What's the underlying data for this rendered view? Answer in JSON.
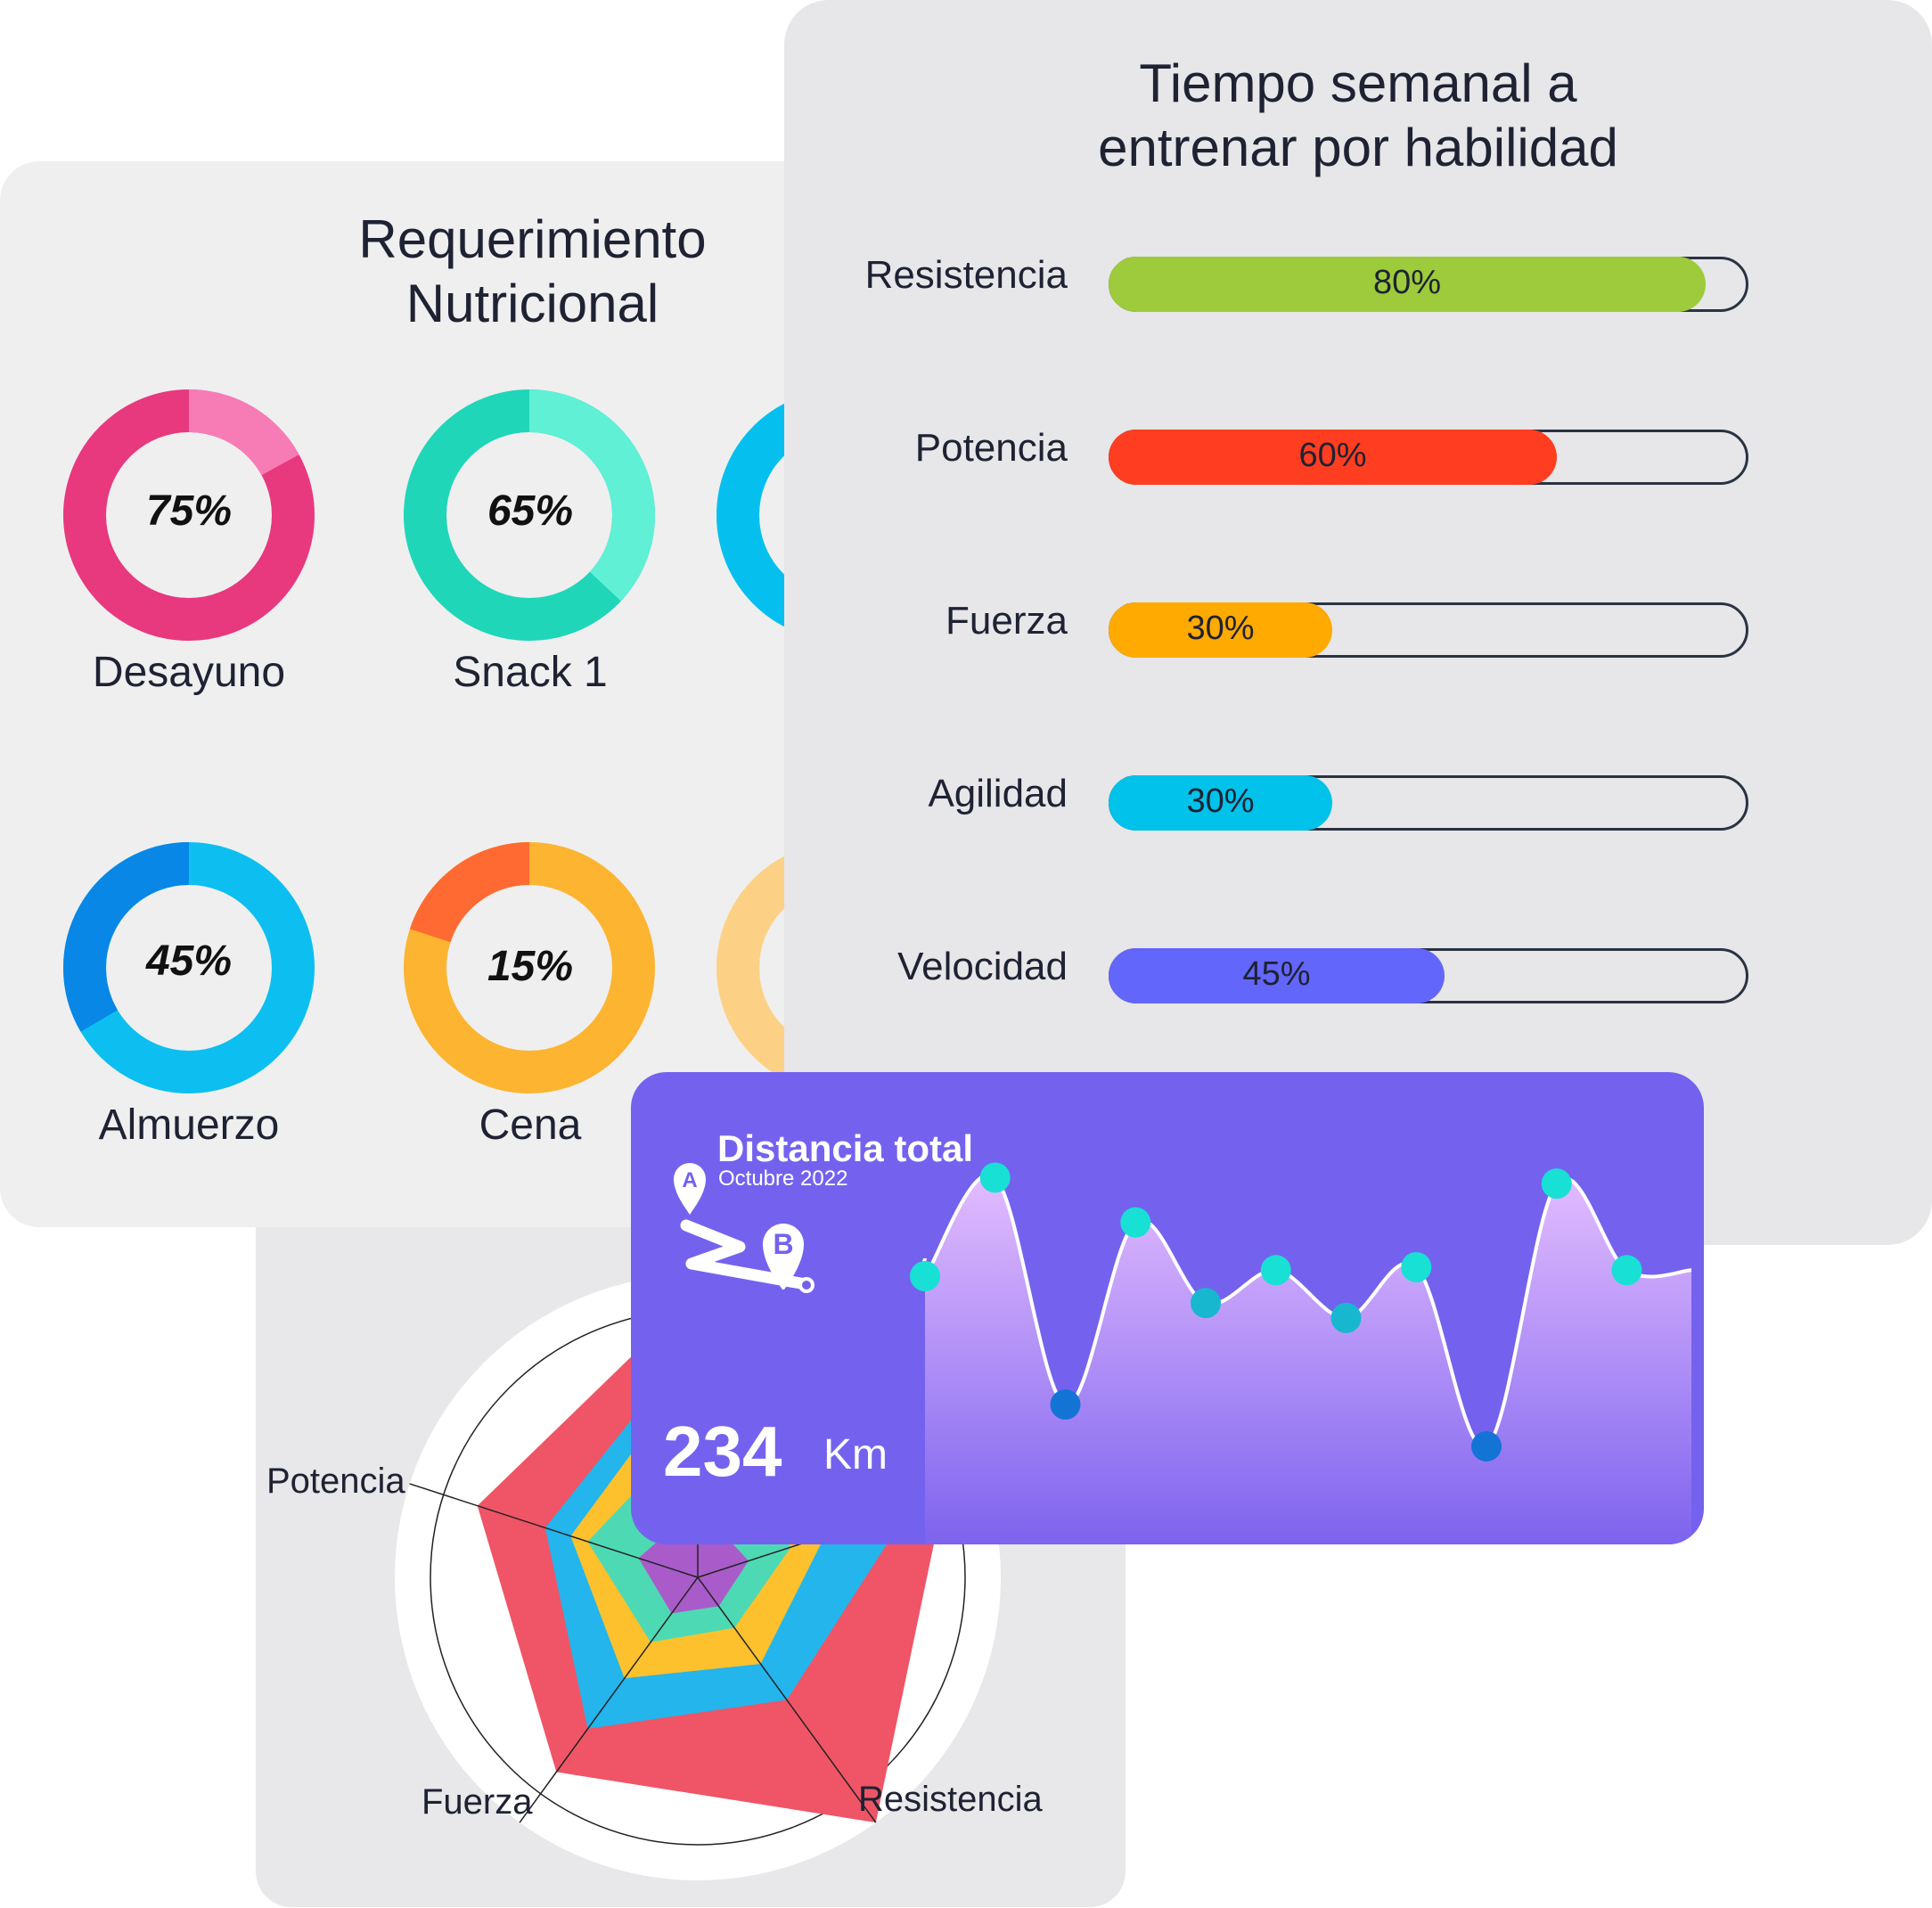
{
  "nutrition": {
    "title_line1": "Requerimiento",
    "title_line2": "Nutricional",
    "meals": [
      {
        "label": "Desayuno",
        "value_label": "75%",
        "percent": 75,
        "main_color": "#e8387e",
        "accent_color": "#f77cb6"
      },
      {
        "label": "Snack 1",
        "value_label": "65%",
        "percent": 65,
        "main_color": "#1fd6b8",
        "accent_color": "#5ff0d6"
      },
      {
        "label": "Almuerzo",
        "value_label": "45%",
        "percent": 45,
        "main_color": "#0cbff0",
        "accent_color": "#0887e6"
      },
      {
        "label": "Cena",
        "value_label": "15%",
        "percent": 15,
        "main_color": "#fcb431",
        "accent_color": "#ff6a32"
      }
    ],
    "partial_colors": [
      "#05c0ef",
      "#fdd185"
    ]
  },
  "training": {
    "title_line1": "Tiempo semanal a",
    "title_line2": "entrenar por habilidad",
    "skills": [
      {
        "label": "Resistencia",
        "value_label": "80%",
        "fraction": 0.8,
        "color": "#9dcb3b"
      },
      {
        "label": "Potencia",
        "value_label": "60%",
        "fraction": 0.6,
        "color": "#ff3d20"
      },
      {
        "label": "Fuerza",
        "value_label": "30%",
        "fraction": 0.3,
        "color": "#ffaa00"
      },
      {
        "label": "Agilidad",
        "value_label": "30%",
        "fraction": 0.3,
        "color": "#00c2ea"
      },
      {
        "label": "Velocidad",
        "value_label": "45%",
        "fraction": 0.45,
        "color": "#6366fa"
      }
    ]
  },
  "radar": {
    "axes_visible": [
      "Potencia",
      "Fuerza",
      "Resistencia"
    ],
    "layer_colors": [
      "#ef5566",
      "#23b5ec",
      "#fcc12d",
      "#4ed9b5",
      "#a95cc9"
    ]
  },
  "distance": {
    "title": "Distancia total",
    "subtitle": "Octubre 2022",
    "value": "234",
    "unit": "Km",
    "marker_a": "A",
    "marker_b": "B",
    "background": "#7462ee"
  },
  "chart_data": [
    {
      "type": "pie",
      "title": "Requerimiento Nutricional",
      "categories": [
        "Desayuno",
        "Snack 1",
        "Almuerzo",
        "Cena"
      ],
      "values": [
        75,
        65,
        45,
        15
      ]
    },
    {
      "type": "bar",
      "title": "Tiempo semanal a entrenar por habilidad",
      "categories": [
        "Resistencia",
        "Potencia",
        "Fuerza",
        "Agilidad",
        "Velocidad"
      ],
      "values": [
        80,
        60,
        30,
        30,
        45
      ],
      "ylim": [
        0,
        100
      ]
    },
    {
      "type": "area",
      "title": "Distancia total",
      "subtitle": "Octubre 2022",
      "x": [
        1,
        2,
        3,
        4,
        5,
        6,
        7,
        8,
        9,
        10,
        11
      ],
      "values": [
        6.0,
        9.3,
        1.7,
        7.8,
        5.1,
        6.2,
        4.6,
        6.3,
        0.3,
        9.1,
        6.2
      ],
      "total": "234 Km"
    }
  ]
}
